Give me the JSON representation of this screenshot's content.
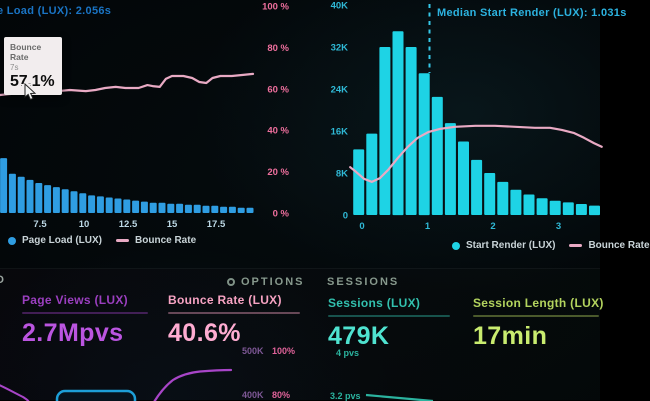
{
  "chart_data": [
    {
      "id": "page-load-histogram",
      "type": "bar",
      "title": "e Load (LUX): 2.056s",
      "x_unit": "seconds",
      "x_start": 5.43,
      "x_step": 0.5,
      "values_pct": [
        26.5,
        19,
        17.5,
        16,
        14.5,
        13.5,
        12.5,
        11.5,
        10.5,
        9.5,
        8.5,
        8,
        7.5,
        7,
        6.5,
        6,
        5.5,
        5,
        5,
        4.5,
        4.5,
        4,
        4,
        3.5,
        3.5,
        3,
        3,
        2.5,
        2.5
      ],
      "x_ticks": {
        "values": [
          7.5,
          10,
          12.5,
          15,
          17.5
        ],
        "labels": [
          "7.5",
          "10",
          "12.5",
          "15",
          "17.5"
        ]
      },
      "y_axis": {
        "side": "right",
        "min": 0,
        "max": 100,
        "values": [
          100,
          80,
          60,
          40,
          20,
          0
        ],
        "labels": [
          "100 %",
          "80 %",
          "60 %",
          "40 %",
          "20 %",
          "0 %"
        ]
      },
      "overlay_line": {
        "name": "Bounce Rate",
        "points": [
          [
            5.22,
            57
          ],
          [
            5.8,
            57.5
          ],
          [
            6.3,
            58
          ],
          [
            6.85,
            59.2
          ],
          [
            7.5,
            58.5
          ],
          [
            8.4,
            58.8
          ],
          [
            9.2,
            59.4
          ],
          [
            10.1,
            58.9
          ],
          [
            10.65,
            59.4
          ],
          [
            11.2,
            60.4
          ],
          [
            11.8,
            60.9
          ],
          [
            12.35,
            60.4
          ],
          [
            13.1,
            60.4
          ],
          [
            13.6,
            61.8
          ],
          [
            13.9,
            61.3
          ],
          [
            14.3,
            60.9
          ],
          [
            14.65,
            64.8
          ],
          [
            15.0,
            66.2
          ],
          [
            15.65,
            66.2
          ],
          [
            16.15,
            65.2
          ],
          [
            16.55,
            63.3
          ],
          [
            16.95,
            62.8
          ],
          [
            17.3,
            65.2
          ],
          [
            17.75,
            66.2
          ],
          [
            18.4,
            66.2
          ],
          [
            19.05,
            66.7
          ],
          [
            19.6,
            67.2
          ]
        ]
      },
      "legend": [
        "Page Load (LUX)",
        "Bounce Rate"
      ]
    },
    {
      "id": "start-render-histogram",
      "type": "bar",
      "title": "Median Start Render (LUX): 1.031s",
      "median_s": 1.031,
      "x_unit": "seconds",
      "x_start": -0.05,
      "x_step": 0.2,
      "values_k": [
        12.5,
        15.5,
        32,
        35,
        32,
        27,
        22.5,
        17.5,
        14,
        10.5,
        8,
        6.3,
        4.8,
        3.9,
        3.2,
        2.7,
        2.4,
        2.1,
        1.8
      ],
      "x_ticks": {
        "values": [
          0,
          1,
          2,
          3
        ],
        "labels": [
          "0",
          "1",
          "2",
          "3"
        ]
      },
      "y_axis": {
        "side": "left",
        "min": 0,
        "max": 40000,
        "values": [
          40000,
          32000,
          24000,
          16000,
          8000,
          0
        ],
        "labels": [
          "40K",
          "32K",
          "24K",
          "16K",
          "8K",
          "0"
        ]
      },
      "overlay_line": {
        "name": "Bounce Rate",
        "points_k": [
          [
            -0.18,
            9.1
          ],
          [
            -0.09,
            8.2
          ],
          [
            0.03,
            6.9
          ],
          [
            0.15,
            6.3
          ],
          [
            0.27,
            7.0
          ],
          [
            0.4,
            8.6
          ],
          [
            0.55,
            10.9
          ],
          [
            0.7,
            13.0
          ],
          [
            0.85,
            14.7
          ],
          [
            1.01,
            15.8
          ],
          [
            1.19,
            16.4
          ],
          [
            1.42,
            16.8
          ],
          [
            1.73,
            17.0
          ],
          [
            2.03,
            17.0
          ],
          [
            2.34,
            16.8
          ],
          [
            2.64,
            16.6
          ],
          [
            2.87,
            16.6
          ],
          [
            3.05,
            16.2
          ],
          [
            3.24,
            15.6
          ],
          [
            3.39,
            14.7
          ],
          [
            3.54,
            13.7
          ],
          [
            3.66,
            13.0
          ]
        ]
      },
      "legend": [
        "Start Render (LUX)",
        "Bounce Rate"
      ]
    }
  ],
  "tooltip": {
    "title": "Bounce Rate",
    "subtitle": "7s",
    "value": "57.1%"
  },
  "sections": {
    "left_header_fragment": "D",
    "options_label": "OPTIONS",
    "sessions_label": "SESSIONS"
  },
  "metrics": [
    {
      "label": "Page Views (LUX)",
      "value": "2.7Mpvs"
    },
    {
      "label": "Bounce Rate (LUX)",
      "value": "40.6%"
    },
    {
      "label": "Sessions (LUX)",
      "value": "479K"
    },
    {
      "label": "Session Length (LUX)",
      "value": "17min"
    }
  ],
  "mini_axis": {
    "row1_left": "500K",
    "row1_right": "100%",
    "row2_left": "400K",
    "row2_right": "80%"
  },
  "spark_labels": {
    "top": "4 pvs",
    "bottom": "3.2 pvs"
  },
  "colors": {
    "left_title": "#1a74c4",
    "right_title": "#2cb3e0",
    "page_load_bar": "#2f9de2",
    "start_render_bar": "#1ed3e5",
    "bounce_line": "#e9aac4",
    "pct_axis": "#ee6f9d",
    "left_x_axis": "#bdd9e6",
    "right_axis": "#2fb9d6",
    "median_line": "#35c8e8",
    "page_views_label": "#9b3fc0",
    "page_views_value": "#bb55e0",
    "bounce_label": "#f7a3c3",
    "bounce_value": "#ffacd1",
    "sessions_label": "#32c0ae",
    "sessions_value": "#4fe3d0",
    "length_label": "#b3d45e",
    "length_value": "#c9ec6f",
    "mini_k_label": "#7e5896",
    "mini_pct_label": "#e0639a",
    "spark_teal": "#2bb39f",
    "spark_purple": "#a845c8",
    "cyan_box_border": "#1d9fd8"
  }
}
